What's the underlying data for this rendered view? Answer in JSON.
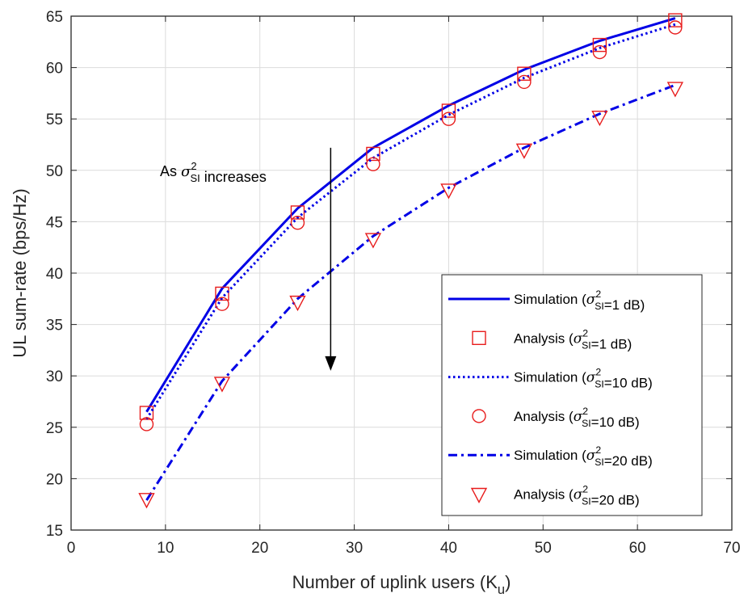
{
  "chart_data": {
    "type": "line",
    "xlabel": "Number of uplink users (K",
    "xlabel_sub": "u",
    "xlabel_end": ")",
    "ylabel": "UL sum-rate (bps/Hz)",
    "xlim": [
      0,
      70
    ],
    "ylim": [
      15,
      65
    ],
    "xticks": [
      0,
      10,
      20,
      30,
      40,
      50,
      60,
      70
    ],
    "yticks": [
      15,
      20,
      25,
      30,
      35,
      40,
      45,
      50,
      55,
      60,
      65
    ],
    "grid": true,
    "legend_position": "bottom-right",
    "x": [
      8,
      16,
      24,
      32,
      40,
      48,
      56,
      64
    ],
    "series": [
      {
        "name": "Simulation (σ²SI=1 dB)",
        "kind": "line",
        "style": "solid",
        "color": "#0000e6",
        "values": [
          26.5,
          38.5,
          46.3,
          52.2,
          56.3,
          59.8,
          62.6,
          64.8
        ]
      },
      {
        "name": "Analysis (σ²SI=1 dB)",
        "kind": "marker",
        "marker": "square",
        "color": "#e81c1c",
        "values": [
          26.4,
          38.0,
          45.9,
          51.6,
          55.8,
          59.4,
          62.2,
          64.6
        ]
      },
      {
        "name": "Simulation (σ²SI=10 dB)",
        "kind": "line",
        "style": "dotted",
        "color": "#0000e6",
        "values": [
          25.8,
          37.6,
          45.4,
          51.2,
          55.4,
          59.0,
          61.9,
          64.2
        ]
      },
      {
        "name": "Analysis (σ²SI=10 dB)",
        "kind": "marker",
        "marker": "circle",
        "color": "#e81c1c",
        "values": [
          25.3,
          37.0,
          44.9,
          50.6,
          55.0,
          58.6,
          61.5,
          63.9
        ]
      },
      {
        "name": "Simulation (σ²SI=20 dB)",
        "kind": "line",
        "style": "dashdot",
        "color": "#0000e6",
        "values": [
          17.9,
          29.5,
          37.5,
          43.6,
          48.3,
          52.2,
          55.5,
          58.3
        ]
      },
      {
        "name": "Analysis (σ²SI=20 dB)",
        "kind": "marker",
        "marker": "triangle",
        "color": "#e81c1c",
        "values": [
          18.0,
          29.3,
          37.2,
          43.3,
          48.1,
          52.0,
          55.2,
          58.0
        ]
      }
    ],
    "legend": [
      {
        "prefix": "Simulation (",
        "suffix": "=1 dB)"
      },
      {
        "prefix": "Analysis (",
        "suffix": "=1 dB)"
      },
      {
        "prefix": "Simulation (",
        "suffix": "=10 dB)"
      },
      {
        "prefix": "Analysis (",
        "suffix": "=10 dB)"
      },
      {
        "prefix": "Simulation (",
        "suffix": "=20 dB)"
      },
      {
        "prefix": "Analysis (",
        "suffix": "=20 dB)"
      }
    ],
    "sigma_symbol": "σ",
    "sigma_sup": "2",
    "sigma_sub": "SI",
    "annotation": {
      "prefix": "As ",
      "suffix": " increases",
      "arrow_x": 27.5,
      "arrow_y_start": 52.2,
      "arrow_y_end": 30.5
    }
  }
}
